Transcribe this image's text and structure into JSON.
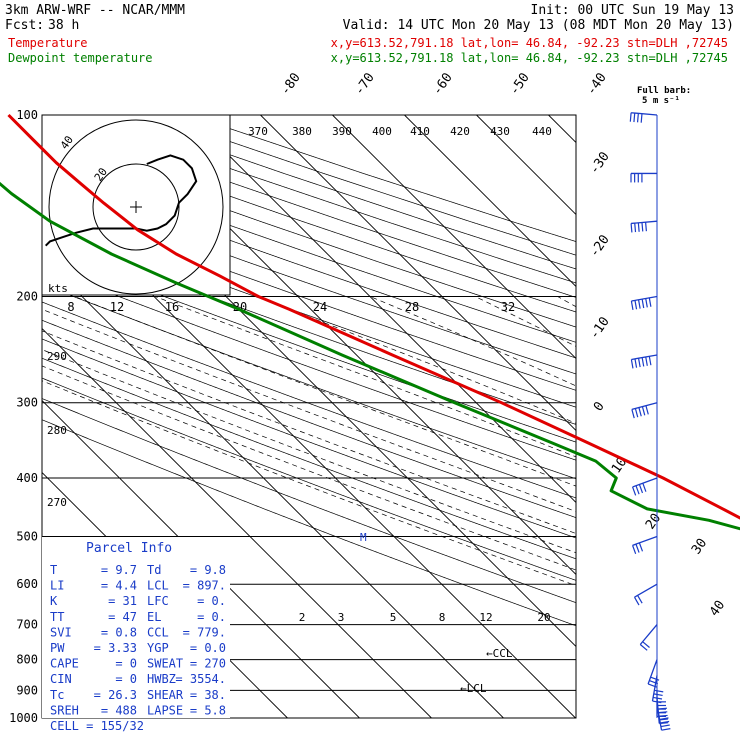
{
  "header": {
    "model": "3km ARW-WRF -- NCAR/MMM",
    "init": "Init: 00 UTC Sun 19 May 13",
    "fcst_label": "Fcst:",
    "fcst_hours": "38 h",
    "valid": "Valid: 14 UTC Mon 20 May 13 (08 MDT Mon 20 May 13)",
    "temperature_label": "Temperature",
    "dewpoint_label": "Dewpoint temperature",
    "location": "x,y=613.52,791.18   lat,lon= 46.84, -92.23   stn=DLH ,72745",
    "colors": {
      "temperature": "#e00000",
      "dewpoint": "#008000"
    }
  },
  "barb_legend": {
    "title": "Full barb:",
    "value": "5 m s⁻¹"
  },
  "hodograph": {
    "units": "kts",
    "ring_labels": [
      "20",
      "40"
    ]
  },
  "parcel_info": {
    "title": "Parcel Info",
    "rows": [
      {
        "l1": "T",
        "v1": "9.7",
        "l2": "Td",
        "v2": "9.8"
      },
      {
        "l1": "LI",
        "v1": "4.4",
        "l2": "LCL",
        "v2": "897."
      },
      {
        "l1": "K",
        "v1": "31",
        "l2": "LFC",
        "v2": "0."
      },
      {
        "l1": "TT",
        "v1": "47",
        "l2": "EL",
        "v2": "0."
      },
      {
        "l1": "SVI",
        "v1": "0.8",
        "l2": "CCL",
        "v2": "779."
      },
      {
        "l1": "PW",
        "v1": "3.33",
        "l2": "YGP",
        "v2": "0.0"
      },
      {
        "l1": "CAPE",
        "v1": "0",
        "l2": "SWEAT",
        "v2": "270"
      },
      {
        "l1": "CIN",
        "v1": "0",
        "l2": "HWBZ",
        "v2": "3554."
      },
      {
        "l1": "Tc",
        "v1": "26.3",
        "l2": "SHEAR",
        "v2": "38."
      },
      {
        "l1": "SREH",
        "v1": "488",
        "l2": "LAPSE",
        "v2": "5.8"
      },
      {
        "l1": "CELL",
        "v1": "155/32",
        "l2": "",
        "v2": ""
      }
    ]
  },
  "chart_data": {
    "type": "line",
    "title": "",
    "y_axis": {
      "scale": "log-pressure",
      "ticks": [
        100,
        200,
        300,
        400,
        500,
        600,
        700,
        800,
        900,
        1000
      ]
    },
    "isotherm_labels": [
      "-80",
      "-70",
      "-60",
      "-50",
      "-40",
      "-30",
      "-20",
      "-10",
      "0",
      "10",
      "20",
      "30",
      "40"
    ],
    "theta_e_labels": [
      "370",
      "380",
      "390",
      "400",
      "410",
      "420",
      "430",
      "440"
    ],
    "mixing_ratio_labels_upper": [
      "8",
      "12",
      "16",
      "20",
      "24",
      "28",
      "32"
    ],
    "mixing_ratio_labels_lower": [
      "2",
      "3",
      "5",
      "8",
      "12",
      "20"
    ],
    "theta_labels": [
      "290",
      "280",
      "270"
    ],
    "annotations": [
      "CCL",
      "LCL",
      "M"
    ],
    "series": [
      {
        "name": "Temperature",
        "color": "#e00000",
        "points": [
          [
            945,
            14.5
          ],
          [
            920,
            14.0
          ],
          [
            900,
            14.0
          ],
          [
            880,
            13.0
          ],
          [
            850,
            11.0
          ],
          [
            800,
            8.0
          ],
          [
            760,
            5.5
          ],
          [
            700,
            3.0
          ],
          [
            650,
            1.5
          ],
          [
            600,
            -1.0
          ],
          [
            550,
            -3.5
          ],
          [
            500,
            -7.0
          ],
          [
            450,
            -10.5
          ],
          [
            400,
            -14.5
          ],
          [
            350,
            -20.0
          ],
          [
            300,
            -26.5
          ],
          [
            250,
            -35.0
          ],
          [
            210,
            -43.0
          ],
          [
            200,
            -45.5
          ],
          [
            185,
            -48.0
          ],
          [
            170,
            -51.0
          ],
          [
            155,
            -53.0
          ],
          [
            140,
            -54.0
          ],
          [
            130,
            -54.5
          ],
          [
            120,
            -55.0
          ],
          [
            110,
            -55.0
          ],
          [
            100,
            -55.0
          ]
        ]
      },
      {
        "name": "Dewpoint temperature",
        "color": "#008000",
        "points": [
          [
            945,
            9.0
          ],
          [
            925,
            11.0
          ],
          [
            900,
            10.5
          ],
          [
            880,
            9.5
          ],
          [
            850,
            8.0
          ],
          [
            800,
            6.0
          ],
          [
            760,
            3.5
          ],
          [
            720,
            2.5
          ],
          [
            700,
            2.0
          ],
          [
            650,
            0.5
          ],
          [
            600,
            -1.5
          ],
          [
            550,
            -4.0
          ],
          [
            500,
            -8.0
          ],
          [
            470,
            -14.0
          ],
          [
            450,
            -21.0
          ],
          [
            420,
            -23.5
          ],
          [
            400,
            -21.0
          ],
          [
            375,
            -21.5
          ],
          [
            350,
            -25.0
          ],
          [
            300,
            -33.0
          ],
          [
            250,
            -42.0
          ],
          [
            210,
            -50.0
          ],
          [
            190,
            -55.0
          ],
          [
            170,
            -60.0
          ],
          [
            150,
            -64.0
          ],
          [
            135,
            -65.5
          ],
          [
            125,
            -66.0
          ],
          [
            110,
            -67.0
          ],
          [
            100,
            -68.0
          ]
        ]
      }
    ],
    "wind_profile": [
      {
        "p": 950,
        "dir": 170,
        "spd": 20
      },
      {
        "p": 925,
        "dir": 175,
        "spd": 25
      },
      {
        "p": 900,
        "dir": 180,
        "spd": 25
      },
      {
        "p": 850,
        "dir": 190,
        "spd": 20
      },
      {
        "p": 800,
        "dir": 200,
        "spd": 15
      },
      {
        "p": 700,
        "dir": 220,
        "spd": 10
      },
      {
        "p": 600,
        "dir": 240,
        "spd": 10
      },
      {
        "p": 500,
        "dir": 250,
        "spd": 15
      },
      {
        "p": 400,
        "dir": 250,
        "spd": 20
      },
      {
        "p": 300,
        "dir": 255,
        "spd": 25
      },
      {
        "p": 250,
        "dir": 260,
        "spd": 30
      },
      {
        "p": 200,
        "dir": 260,
        "spd": 30
      },
      {
        "p": 150,
        "dir": 265,
        "spd": 25
      },
      {
        "p": 125,
        "dir": 270,
        "spd": 20
      },
      {
        "p": 100,
        "dir": 275,
        "spd": 20
      }
    ],
    "hodograph_points": [
      [
        5,
        -20
      ],
      [
        10,
        -22
      ],
      [
        16,
        -24
      ],
      [
        22,
        -22
      ],
      [
        26,
        -18
      ],
      [
        28,
        -12
      ],
      [
        24,
        -6
      ],
      [
        20,
        -2
      ],
      [
        18,
        4
      ],
      [
        14,
        8
      ],
      [
        10,
        10
      ],
      [
        5,
        11
      ],
      [
        0,
        10
      ],
      [
        -5,
        10
      ],
      [
        -10,
        10
      ],
      [
        -20,
        10
      ],
      [
        -28,
        12
      ],
      [
        -34,
        14
      ],
      [
        -40,
        16
      ],
      [
        -42,
        18
      ]
    ]
  }
}
